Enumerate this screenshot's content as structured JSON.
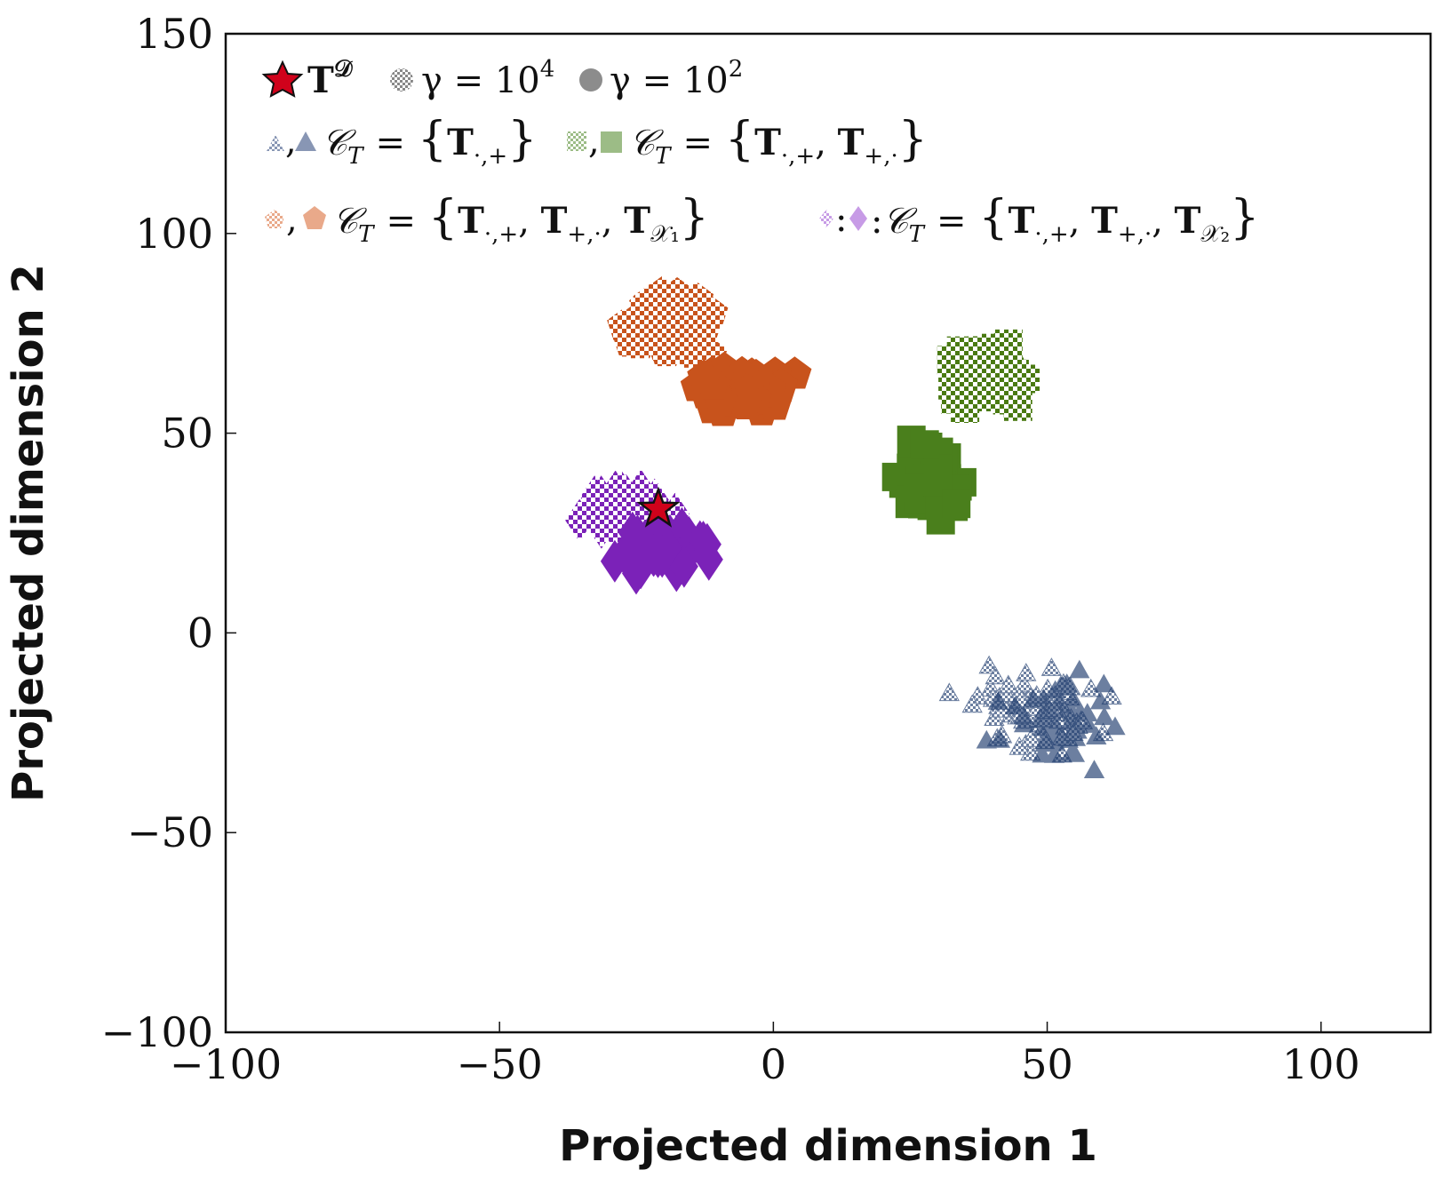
{
  "chart_data": {
    "type": "scatter",
    "xlabel": "Projected dimension 1",
    "ylabel": "Projected dimension 2",
    "xlim": [
      -100,
      120
    ],
    "ylim": [
      -100,
      150
    ],
    "xticks": [
      -100,
      -50,
      0,
      50,
      100
    ],
    "yticks": [
      -100,
      -50,
      0,
      50,
      100,
      150
    ],
    "xtick_labels": [
      "−100",
      "−50",
      "0",
      "50",
      "100"
    ],
    "ytick_labels": [
      "−100",
      "−50",
      "0",
      "50",
      "100",
      "150"
    ],
    "grid": false,
    "legend_position": "top-left",
    "legend": {
      "reference": {
        "label": "T",
        "superscript": "𝒟"
      },
      "gamma_high": {
        "label": "γ = 10",
        "superscript": "4"
      },
      "gamma_low": {
        "label": "γ = 10",
        "superscript": "2"
      },
      "entries": [
        {
          "separator": ",",
          "set": "𝒞",
          "set_sub": "T",
          "eq": "=",
          "lbrace": "{",
          "rbrace": "}",
          "terms": [
            {
              "base": "T",
              "sub": "·,+"
            }
          ]
        },
        {
          "separator": ",",
          "set": "𝒞",
          "set_sub": "T",
          "eq": "=",
          "lbrace": "{",
          "rbrace": "}",
          "terms": [
            {
              "base": "T",
              "sub": "·,+"
            },
            {
              "base": "T",
              "sub": "+,·"
            }
          ]
        },
        {
          "separator": ",",
          "set": "𝒞",
          "set_sub": "T",
          "eq": "=",
          "lbrace": "{",
          "rbrace": "}",
          "terms": [
            {
              "base": "T",
              "sub": "·,+"
            },
            {
              "base": "T",
              "sub": "+,·"
            },
            {
              "base": "T",
              "sub": "𝒳₁"
            }
          ]
        },
        {
          "separator": ":",
          "set": "𝒞",
          "set_sub": "T",
          "eq": "=",
          "lbrace": "{",
          "rbrace": "}",
          "terms": [
            {
              "base": "T",
              "sub": "·,+"
            },
            {
              "base": "T",
              "sub": "+,·"
            },
            {
              "base": "T",
              "sub": "𝒳₂"
            }
          ]
        }
      ]
    },
    "reference_point": {
      "x": -21,
      "y": 31,
      "color": "#d0021b"
    },
    "series": [
      {
        "marker": "triangle",
        "gamma": "10^4",
        "color": "#1f3c6e",
        "center": [
          48,
          -20
        ],
        "spread": [
          6,
          5
        ],
        "n": 70,
        "opacity": 0.65
      },
      {
        "marker": "triangle",
        "gamma": "10^2",
        "color": "#1f3c6e",
        "center": [
          52,
          -22
        ],
        "spread": [
          5,
          5
        ],
        "n": 50,
        "opacity": 0.65
      },
      {
        "marker": "square",
        "gamma": "10^4",
        "color": "#4a7a12",
        "center": [
          39,
          64
        ],
        "spread": [
          3.6,
          3.4
        ],
        "n": 60,
        "opacity": 1
      },
      {
        "marker": "square",
        "gamma": "10^2",
        "color": "#4a7f1c",
        "center": [
          29,
          38
        ],
        "spread": [
          2.6,
          4
        ],
        "n": 60,
        "opacity": 1
      },
      {
        "marker": "pentagon",
        "gamma": "10^4",
        "color": "#c8531c",
        "center": [
          -20,
          77
        ],
        "spread": [
          4,
          3.6
        ],
        "n": 60,
        "opacity": 1
      },
      {
        "marker": "pentagon",
        "gamma": "10^2",
        "color": "#c8531c",
        "center": [
          -6,
          60
        ],
        "spread": [
          4,
          3
        ],
        "n": 60,
        "opacity": 1
      },
      {
        "marker": "diamond",
        "gamma": "10^4",
        "color": "#7b22b8",
        "center": [
          -27,
          31
        ],
        "spread": [
          3.6,
          2.4
        ],
        "n": 60,
        "opacity": 1
      },
      {
        "marker": "diamond",
        "gamma": "10^2",
        "color": "#7b22b8",
        "center": [
          -21,
          21
        ],
        "spread": [
          4,
          2.6
        ],
        "n": 60,
        "opacity": 1
      }
    ],
    "colors": {
      "blue": "#1f3c6e",
      "green": "#4a7a12",
      "orange": "#c8531c",
      "purple": "#7b22b8",
      "star": "#d0021b"
    }
  }
}
